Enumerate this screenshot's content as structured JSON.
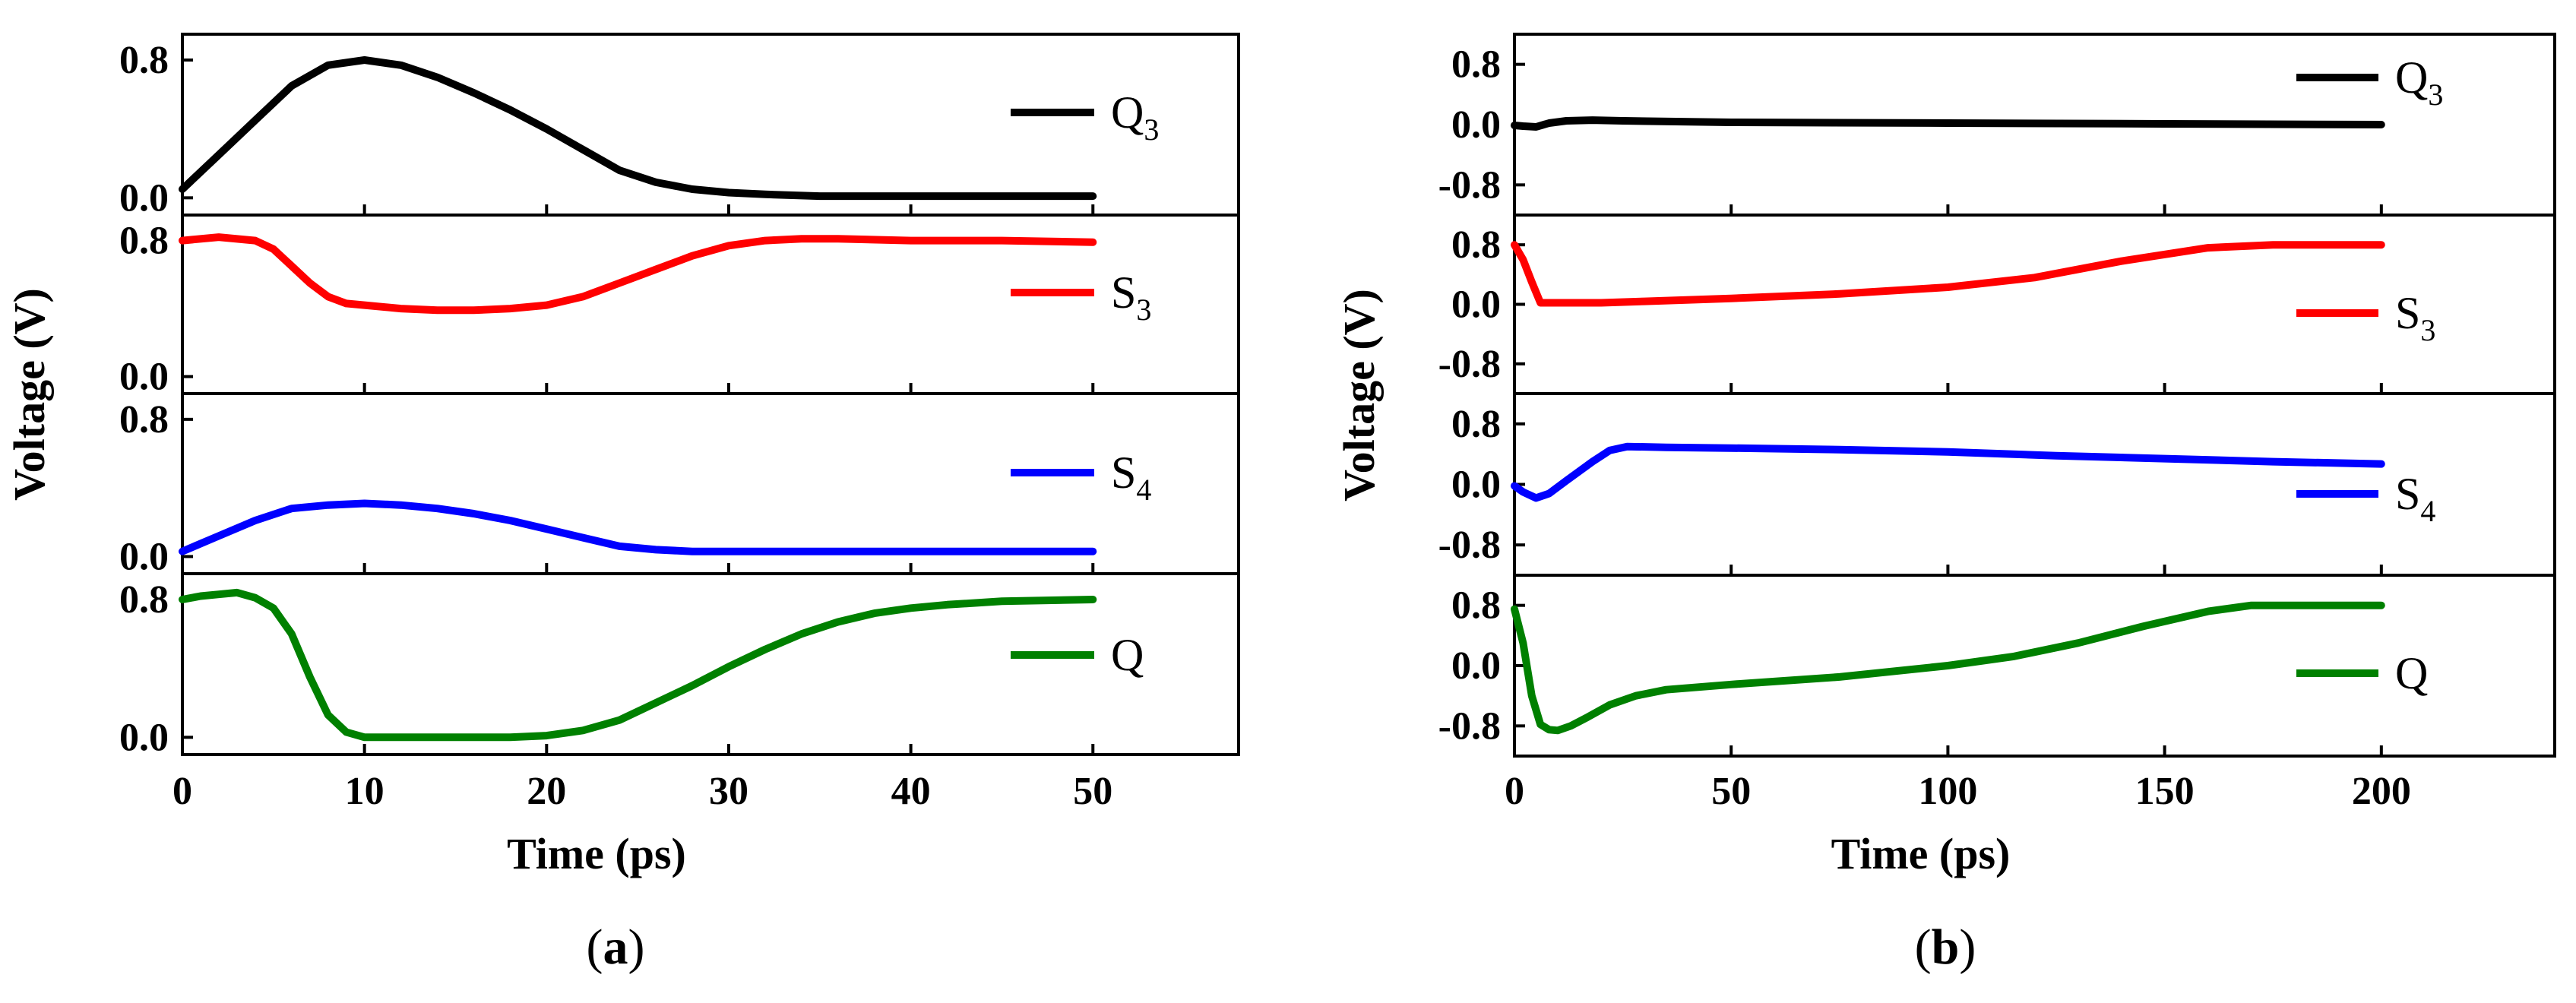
{
  "figure_labels": {
    "a": "a",
    "b": "b"
  },
  "chart_data": [
    {
      "type": "line",
      "panel": "a",
      "xlabel": "Time (ps)",
      "ylabel": "Voltage (V)",
      "xlim": [
        0,
        58
      ],
      "xticks": [
        0,
        10,
        20,
        30,
        40,
        50
      ],
      "subplots": [
        {
          "name": "Q",
          "sub": "3",
          "color": "#000000",
          "ylim": [
            -0.1,
            0.95
          ],
          "yticks": [
            0.8,
            0.0
          ],
          "ytick_labels": [
            "0.8",
            "0.0"
          ],
          "x": [
            0,
            2,
            4,
            6,
            8,
            10,
            12,
            14,
            16,
            18,
            20,
            22,
            24,
            26,
            28,
            30,
            32,
            35,
            40,
            45,
            50
          ],
          "y": [
            0.05,
            0.25,
            0.45,
            0.65,
            0.77,
            0.8,
            0.77,
            0.7,
            0.61,
            0.51,
            0.4,
            0.28,
            0.16,
            0.09,
            0.05,
            0.03,
            0.02,
            0.01,
            0.01,
            0.01,
            0.01
          ]
        },
        {
          "name": "S",
          "sub": "3",
          "color": "#ff0000",
          "ylim": [
            -0.1,
            0.95
          ],
          "yticks": [
            0.8,
            0.0
          ],
          "ytick_labels": [
            "0.8",
            "0.0"
          ],
          "x": [
            0,
            2,
            4,
            5,
            6,
            7,
            8,
            9,
            10,
            12,
            14,
            16,
            18,
            20,
            22,
            24,
            26,
            28,
            30,
            32,
            34,
            36,
            40,
            45,
            50
          ],
          "y": [
            0.8,
            0.82,
            0.8,
            0.75,
            0.65,
            0.55,
            0.47,
            0.43,
            0.42,
            0.4,
            0.39,
            0.39,
            0.4,
            0.42,
            0.47,
            0.55,
            0.63,
            0.71,
            0.77,
            0.8,
            0.81,
            0.81,
            0.8,
            0.8,
            0.79
          ]
        },
        {
          "name": "S",
          "sub": "4",
          "color": "#0000ff",
          "ylim": [
            -0.1,
            0.95
          ],
          "yticks": [
            0.8,
            0.0
          ],
          "ytick_labels": [
            "0.8",
            "0.0"
          ],
          "x": [
            0,
            2,
            4,
            6,
            8,
            10,
            12,
            14,
            16,
            18,
            20,
            22,
            24,
            26,
            28,
            30,
            35,
            40,
            45,
            50
          ],
          "y": [
            0.03,
            0.12,
            0.21,
            0.28,
            0.3,
            0.31,
            0.3,
            0.28,
            0.25,
            0.21,
            0.16,
            0.11,
            0.06,
            0.04,
            0.03,
            0.03,
            0.03,
            0.03,
            0.03,
            0.03
          ]
        },
        {
          "name": "Q",
          "sub": "",
          "color": "#008000",
          "ylim": [
            -0.1,
            0.95
          ],
          "yticks": [
            0.8,
            0.0
          ],
          "ytick_labels": [
            "0.8",
            "0.0"
          ],
          "x": [
            0,
            1,
            2,
            3,
            4,
            5,
            6,
            7,
            8,
            9,
            10,
            12,
            15,
            18,
            20,
            22,
            24,
            26,
            28,
            30,
            32,
            34,
            36,
            38,
            40,
            42,
            45,
            50
          ],
          "y": [
            0.8,
            0.82,
            0.83,
            0.84,
            0.81,
            0.75,
            0.6,
            0.35,
            0.13,
            0.03,
            0.0,
            0.0,
            0.0,
            0.0,
            0.01,
            0.04,
            0.1,
            0.2,
            0.3,
            0.41,
            0.51,
            0.6,
            0.67,
            0.72,
            0.75,
            0.77,
            0.79,
            0.8
          ]
        }
      ]
    },
    {
      "type": "line",
      "panel": "b",
      "xlabel": "Time (ps)",
      "ylabel": "Voltage (V)",
      "xlim": [
        0,
        240
      ],
      "xticks": [
        0,
        50,
        100,
        150,
        200
      ],
      "subplots": [
        {
          "name": "Q",
          "sub": "3",
          "color": "#000000",
          "ylim": [
            -1.2,
            1.2
          ],
          "yticks": [
            0.8,
            0.0,
            -0.8
          ],
          "ytick_labels": [
            "0.8",
            "0.0",
            "-0.8"
          ],
          "x": [
            0,
            2,
            5,
            8,
            12,
            18,
            25,
            50,
            100,
            150,
            200
          ],
          "y": [
            -0.01,
            -0.02,
            -0.03,
            0.02,
            0.05,
            0.06,
            0.05,
            0.03,
            0.02,
            0.01,
            0.0
          ]
        },
        {
          "name": "S",
          "sub": "3",
          "color": "#ff0000",
          "ylim": [
            -1.2,
            1.2
          ],
          "yticks": [
            0.8,
            0.0,
            -0.8
          ],
          "ytick_labels": [
            "0.8",
            "0.0",
            "-0.8"
          ],
          "x": [
            0,
            2,
            4,
            6,
            10,
            20,
            30,
            50,
            75,
            100,
            120,
            140,
            160,
            175,
            200
          ],
          "y": [
            0.8,
            0.6,
            0.3,
            0.02,
            0.02,
            0.02,
            0.04,
            0.08,
            0.14,
            0.23,
            0.36,
            0.58,
            0.76,
            0.8,
            0.8
          ]
        },
        {
          "name": "S",
          "sub": "4",
          "color": "#0000ff",
          "ylim": [
            -1.2,
            1.2
          ],
          "yticks": [
            0.8,
            0.0,
            -0.8
          ],
          "ytick_labels": [
            "0.8",
            "0.0",
            "-0.8"
          ],
          "x": [
            0,
            2,
            5,
            8,
            12,
            18,
            22,
            26,
            35,
            50,
            75,
            100,
            125,
            150,
            175,
            200
          ],
          "y": [
            -0.02,
            -0.1,
            -0.18,
            -0.12,
            0.05,
            0.3,
            0.45,
            0.5,
            0.49,
            0.48,
            0.46,
            0.43,
            0.38,
            0.34,
            0.3,
            0.27
          ]
        },
        {
          "name": "Q",
          "sub": "",
          "color": "#008000",
          "ylim": [
            -1.2,
            1.2
          ],
          "yticks": [
            0.8,
            0.0,
            -0.8
          ],
          "ytick_labels": [
            "0.8",
            "0.0",
            "-0.8"
          ],
          "x": [
            0,
            2,
            4,
            6,
            8,
            10,
            13,
            17,
            22,
            28,
            35,
            50,
            75,
            100,
            115,
            130,
            145,
            160,
            170,
            185,
            200
          ],
          "y": [
            0.75,
            0.3,
            -0.4,
            -0.78,
            -0.85,
            -0.86,
            -0.8,
            -0.68,
            -0.52,
            -0.4,
            -0.32,
            -0.25,
            -0.15,
            0.0,
            0.12,
            0.3,
            0.52,
            0.72,
            0.8,
            0.8,
            0.8
          ]
        }
      ]
    }
  ]
}
